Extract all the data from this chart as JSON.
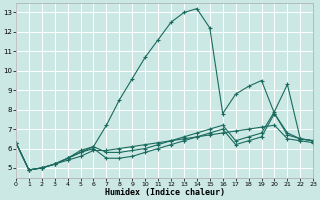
{
  "xlabel": "Humidex (Indice chaleur)",
  "background_color": "#cce8e5",
  "grid_color": "#b8d8d5",
  "line_color": "#1a6b5e",
  "xlim": [
    0,
    23
  ],
  "ylim": [
    4.5,
    13.5
  ],
  "xticks": [
    0,
    1,
    2,
    3,
    4,
    5,
    6,
    7,
    8,
    9,
    10,
    11,
    12,
    13,
    14,
    15,
    16,
    17,
    18,
    19,
    20,
    21,
    22,
    23
  ],
  "yticks": [
    5,
    6,
    7,
    8,
    9,
    10,
    11,
    12,
    13
  ],
  "lines": [
    {
      "x": [
        0,
        1,
        2,
        3,
        4,
        5,
        6,
        7,
        8,
        9,
        10,
        11,
        12,
        13,
        14,
        15,
        16,
        17,
        18,
        19,
        20,
        21,
        22,
        23
      ],
      "y": [
        6.3,
        4.9,
        5.0,
        5.2,
        5.5,
        5.8,
        6.1,
        7.2,
        8.5,
        9.6,
        10.7,
        11.6,
        12.5,
        13.0,
        13.2,
        12.2,
        7.8,
        8.8,
        9.2,
        9.5,
        7.8,
        6.7,
        6.5,
        6.4
      ],
      "marker": true
    },
    {
      "x": [
        0,
        1,
        2,
        3,
        4,
        5,
        6,
        7,
        8,
        9,
        10,
        11,
        12,
        13,
        14,
        15,
        16,
        17,
        18,
        19,
        20,
        21,
        22,
        23
      ],
      "y": [
        6.3,
        4.9,
        5.0,
        5.2,
        5.5,
        5.9,
        6.1,
        5.8,
        5.8,
        5.9,
        6.0,
        6.2,
        6.4,
        6.6,
        6.8,
        7.0,
        7.2,
        6.4,
        6.6,
        6.8,
        7.9,
        9.3,
        6.5,
        6.4
      ],
      "marker": true
    },
    {
      "x": [
        0,
        1,
        2,
        3,
        4,
        5,
        6,
        7,
        8,
        9,
        10,
        11,
        12,
        13,
        14,
        15,
        16,
        17,
        18,
        19,
        20,
        21,
        22,
        23
      ],
      "y": [
        6.3,
        4.9,
        5.0,
        5.2,
        5.5,
        5.8,
        6.0,
        5.5,
        5.5,
        5.6,
        5.8,
        6.0,
        6.2,
        6.4,
        6.6,
        6.8,
        7.0,
        6.2,
        6.4,
        6.6,
        7.8,
        6.8,
        6.5,
        6.4
      ],
      "marker": true
    },
    {
      "x": [
        0,
        1,
        2,
        3,
        4,
        5,
        6,
        7,
        8,
        9,
        10,
        11,
        12,
        13,
        14,
        15,
        16,
        17,
        18,
        19,
        20,
        21,
        22,
        23
      ],
      "y": [
        6.3,
        4.9,
        5.0,
        5.2,
        5.4,
        5.6,
        5.9,
        5.9,
        6.0,
        6.1,
        6.2,
        6.3,
        6.4,
        6.5,
        6.6,
        6.7,
        6.8,
        6.9,
        7.0,
        7.1,
        7.2,
        6.5,
        6.4,
        6.3
      ],
      "marker": true
    }
  ]
}
